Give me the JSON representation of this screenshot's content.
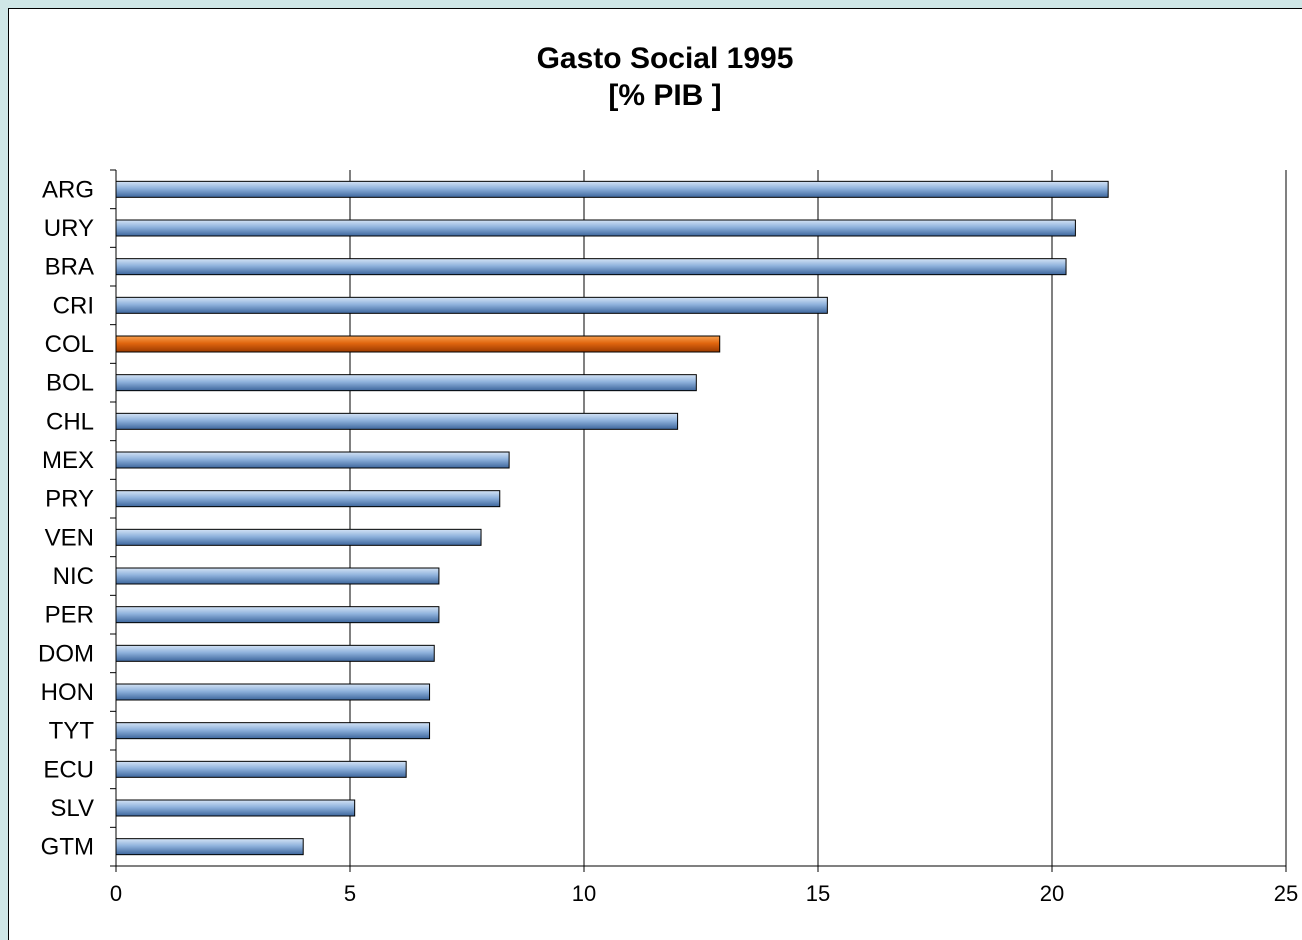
{
  "chart_data": {
    "type": "bar",
    "orientation": "horizontal",
    "title": "Gasto Social 1995",
    "subtitle": "[% PIB ]",
    "xlabel": "",
    "ylabel": "",
    "xlim": [
      0,
      25
    ],
    "x_ticks": [
      "0",
      "5",
      "10",
      "15",
      "20",
      "25"
    ],
    "grid": "vertical",
    "categories": [
      "ARG",
      "URY",
      "BRA",
      "CRI",
      "COL",
      "BOL",
      "CHL",
      "MEX",
      "PRY",
      "VEN",
      "NIC",
      "PER",
      "DOM",
      "HON",
      "TYT",
      "ECU",
      "SLV",
      "GTM"
    ],
    "values": [
      21.2,
      20.5,
      20.3,
      15.2,
      12.9,
      12.4,
      12.0,
      8.4,
      8.2,
      7.8,
      6.9,
      6.9,
      6.8,
      6.7,
      6.7,
      6.2,
      5.1,
      4.0
    ],
    "highlight": "COL",
    "colors": {
      "bar": "#8fb2dc",
      "highlight": "#e0660f",
      "background": "#ffffff",
      "frame": "#cfe6e6"
    }
  }
}
